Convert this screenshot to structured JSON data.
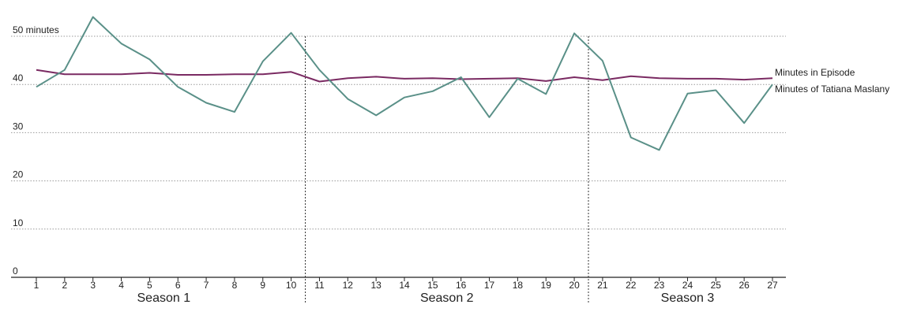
{
  "chart_data": {
    "type": "line",
    "x": [
      1,
      2,
      3,
      4,
      5,
      6,
      7,
      8,
      9,
      10,
      11,
      12,
      13,
      14,
      15,
      16,
      17,
      18,
      19,
      20,
      21,
      22,
      23,
      24,
      25,
      26,
      27
    ],
    "y_ticks": [
      0,
      10,
      20,
      30,
      40,
      50
    ],
    "y_unit_label": "50 minutes",
    "ylim": [
      0,
      50
    ],
    "grid": true,
    "seasons": [
      {
        "label": "Season 1",
        "start": 1,
        "end": 10
      },
      {
        "label": "Season 2",
        "start": 11,
        "end": 20
      },
      {
        "label": "Season 3",
        "start": 21,
        "end": 27
      }
    ],
    "series": [
      {
        "name": "Minutes in Episode",
        "color": "#7a2a62",
        "values": [
          43.0,
          42.1,
          42.1,
          42.1,
          42.4,
          42.0,
          42.0,
          42.1,
          42.1,
          42.6,
          40.6,
          41.3,
          41.6,
          41.2,
          41.3,
          41.1,
          41.2,
          41.3,
          40.7,
          41.5,
          40.9,
          41.7,
          41.3,
          41.2,
          41.2,
          41.0,
          41.3
        ]
      },
      {
        "name": "Minutes of Tatiana Maslany",
        "color": "#5a9088",
        "values": [
          39.5,
          43.0,
          54.0,
          48.5,
          45.2,
          39.5,
          36.2,
          34.3,
          44.8,
          50.7,
          43.0,
          37.0,
          33.6,
          37.3,
          38.6,
          41.5,
          33.2,
          41.2,
          38.0,
          50.6,
          44.9,
          29.0,
          26.4,
          38.1,
          38.8,
          32.0,
          40.0
        ]
      }
    ]
  }
}
